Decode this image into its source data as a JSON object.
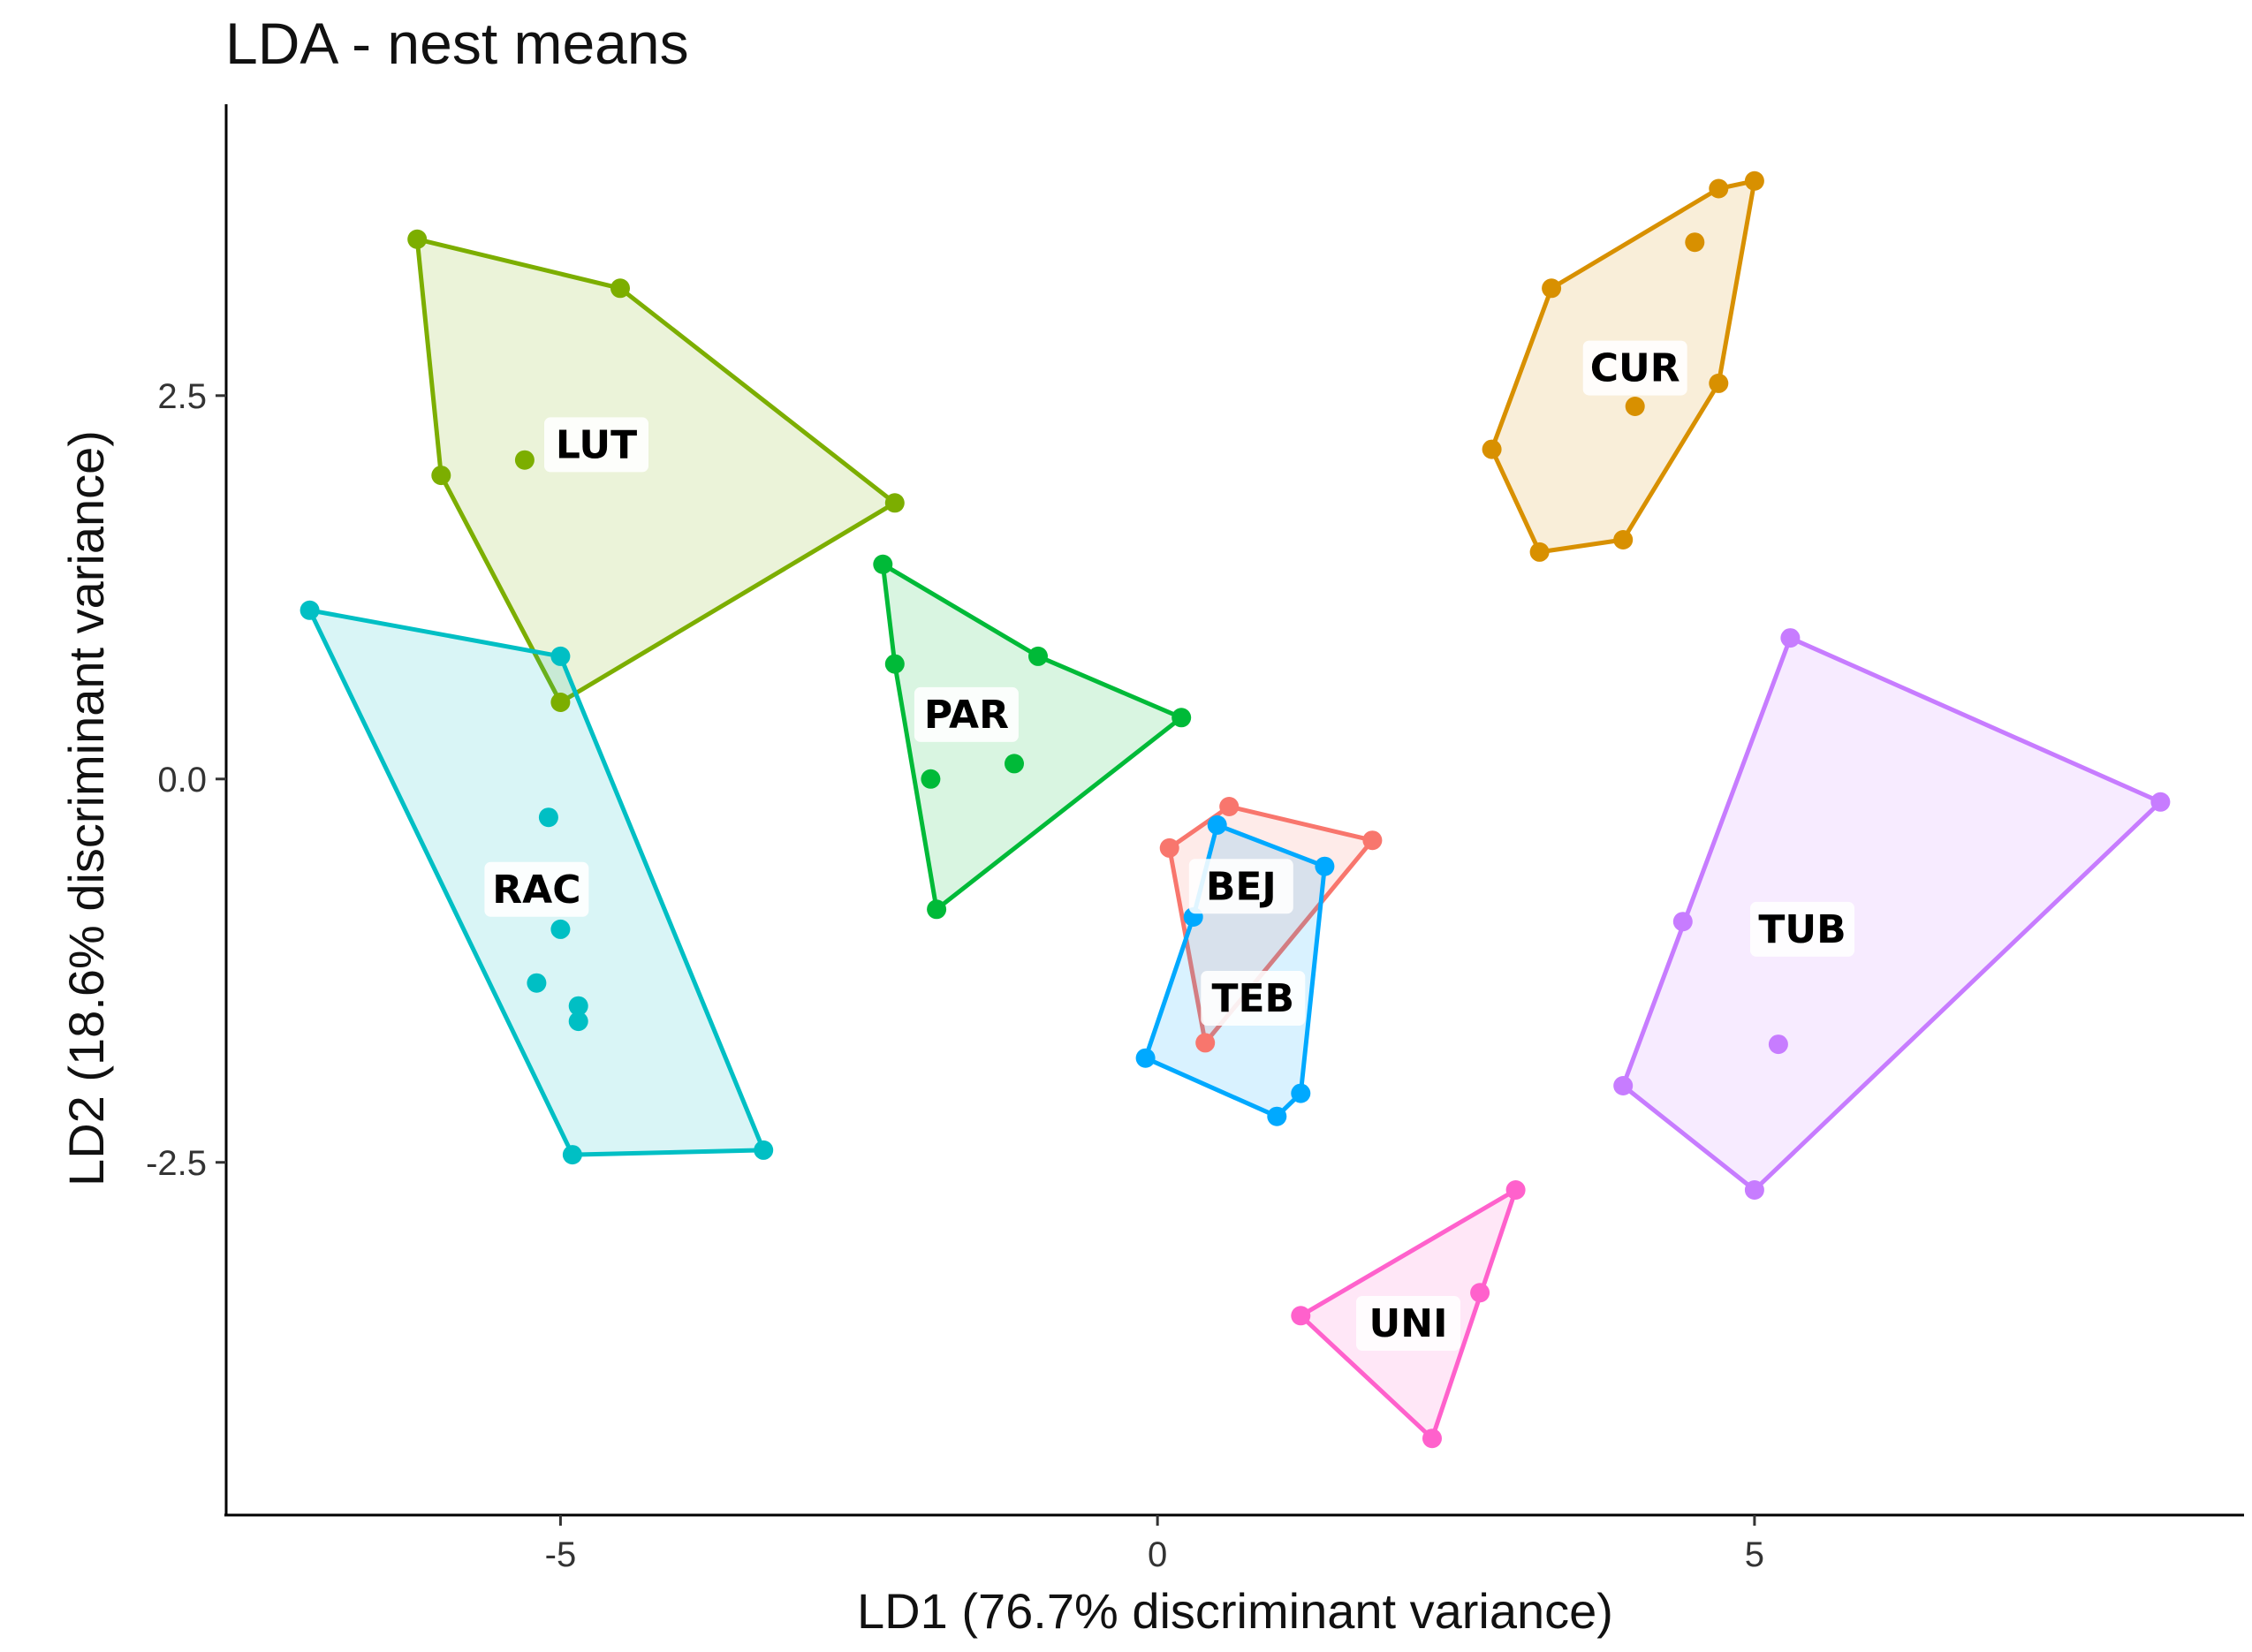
{
  "chart_data": {
    "type": "scatter",
    "title": "LDA - nest means",
    "xlabel": "LD1 (76.7% discriminant variance)",
    "ylabel": "LD2 (18.6% discriminant variance)",
    "xlim": [
      -7.8,
      9.1
    ],
    "ylim": [
      -4.8,
      4.4
    ],
    "x_ticks": [
      {
        "value": -5,
        "label": "-5"
      },
      {
        "value": 0,
        "label": "0"
      },
      {
        "value": 5,
        "label": "5"
      }
    ],
    "y_ticks": [
      {
        "value": 2.5,
        "label": "2.5"
      },
      {
        "value": 0,
        "label": "0.0"
      },
      {
        "value": -2.5,
        "label": "-2.5"
      }
    ],
    "grid": false,
    "series": [
      {
        "name": "BEJ",
        "color": "#F8766D",
        "label_pos": [
          0.7,
          -0.7
        ],
        "points": [
          [
            0.6,
            -0.18
          ],
          [
            1.8,
            -0.4
          ],
          [
            0.1,
            -0.45
          ],
          [
            0.4,
            -1.72
          ]
        ],
        "hull": [
          [
            0.6,
            -0.18
          ],
          [
            1.8,
            -0.4
          ],
          [
            0.4,
            -1.72
          ],
          [
            0.1,
            -0.45
          ]
        ]
      },
      {
        "name": "CUR",
        "color": "#D89000",
        "label_pos": [
          4.0,
          2.68
        ],
        "points": [
          [
            5.0,
            3.9
          ],
          [
            4.7,
            3.85
          ],
          [
            4.5,
            3.5
          ],
          [
            3.3,
            3.2
          ],
          [
            4.7,
            2.58
          ],
          [
            4.0,
            2.43
          ],
          [
            2.8,
            2.15
          ],
          [
            3.2,
            1.48
          ],
          [
            3.9,
            1.56
          ]
        ],
        "hull": [
          [
            5.0,
            3.9
          ],
          [
            4.7,
            3.85
          ],
          [
            3.3,
            3.2
          ],
          [
            2.8,
            2.15
          ],
          [
            3.2,
            1.48
          ],
          [
            3.9,
            1.56
          ],
          [
            4.7,
            2.58
          ]
        ]
      },
      {
        "name": "LUT",
        "color": "#7CAE00",
        "label_pos": [
          -4.7,
          2.18
        ],
        "points": [
          [
            -6.2,
            3.52
          ],
          [
            -4.5,
            3.2
          ],
          [
            -5.3,
            2.08
          ],
          [
            -6.0,
            1.98
          ],
          [
            -2.2,
            1.8
          ],
          [
            -5.0,
            0.5
          ]
        ],
        "hull": [
          [
            -6.2,
            3.52
          ],
          [
            -4.5,
            3.2
          ],
          [
            -2.2,
            1.8
          ],
          [
            -5.0,
            0.5
          ],
          [
            -6.0,
            1.98
          ]
        ]
      },
      {
        "name": "PAR",
        "color": "#00BA38",
        "label_pos": [
          -1.6,
          0.42
        ],
        "points": [
          [
            -2.3,
            1.4
          ],
          [
            -2.2,
            0.75
          ],
          [
            -1.0,
            0.8
          ],
          [
            0.2,
            0.4
          ],
          [
            -1.2,
            0.1
          ],
          [
            -1.9,
            0.0
          ],
          [
            -1.85,
            -0.85
          ]
        ],
        "hull": [
          [
            -2.3,
            1.4
          ],
          [
            -1.0,
            0.8
          ],
          [
            0.2,
            0.4
          ],
          [
            -1.85,
            -0.85
          ],
          [
            -2.2,
            0.75
          ]
        ]
      },
      {
        "name": "RAC",
        "color": "#00BFC4",
        "label_pos": [
          -5.2,
          -0.72
        ],
        "points": [
          [
            -7.1,
            1.1
          ],
          [
            -5.0,
            0.8
          ],
          [
            -5.1,
            -0.25
          ],
          [
            -5.0,
            -0.98
          ],
          [
            -5.2,
            -1.33
          ],
          [
            -4.85,
            -1.48
          ],
          [
            -4.85,
            -1.58
          ],
          [
            -3.3,
            -2.42
          ],
          [
            -4.9,
            -2.45
          ]
        ],
        "hull": [
          [
            -7.1,
            1.1
          ],
          [
            -5.0,
            0.8
          ],
          [
            -3.3,
            -2.42
          ],
          [
            -4.9,
            -2.45
          ]
        ]
      },
      {
        "name": "TEB",
        "color": "#00A9FF",
        "label_pos": [
          0.8,
          -1.43
        ],
        "points": [
          [
            0.5,
            -0.3
          ],
          [
            1.4,
            -0.57
          ],
          [
            0.3,
            -0.9
          ],
          [
            -0.1,
            -1.82
          ],
          [
            1.2,
            -2.05
          ],
          [
            1.0,
            -2.2
          ]
        ],
        "hull": [
          [
            0.5,
            -0.3
          ],
          [
            1.4,
            -0.57
          ],
          [
            1.2,
            -2.05
          ],
          [
            1.0,
            -2.2
          ],
          [
            -0.1,
            -1.82
          ],
          [
            0.3,
            -0.9
          ]
        ]
      },
      {
        "name": "TUB",
        "color": "#C77CFF",
        "label_pos": [
          5.4,
          -0.98
        ],
        "points": [
          [
            5.3,
            0.92
          ],
          [
            8.4,
            -0.15
          ],
          [
            4.4,
            -0.93
          ],
          [
            5.2,
            -1.73
          ],
          [
            3.9,
            -2.0
          ],
          [
            5.0,
            -2.68
          ]
        ],
        "hull": [
          [
            5.3,
            0.92
          ],
          [
            8.4,
            -0.15
          ],
          [
            5.0,
            -2.68
          ],
          [
            3.9,
            -2.0
          ]
        ]
      },
      {
        "name": "UNI",
        "color": "#FF61CC",
        "label_pos": [
          2.1,
          -3.55
        ],
        "points": [
          [
            3.0,
            -2.68
          ],
          [
            2.7,
            -3.35
          ],
          [
            1.2,
            -3.5
          ],
          [
            2.3,
            -4.3
          ]
        ],
        "hull": [
          [
            3.0,
            -2.68
          ],
          [
            2.3,
            -4.3
          ],
          [
            1.2,
            -3.5
          ]
        ]
      }
    ]
  }
}
